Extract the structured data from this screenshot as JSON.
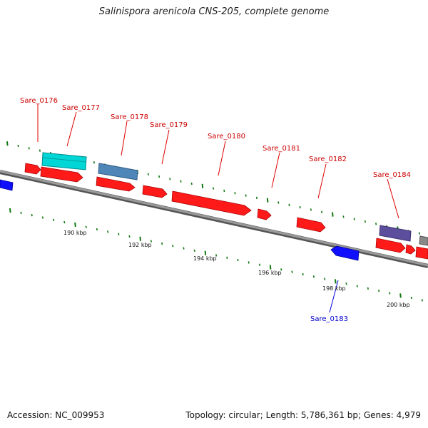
{
  "title": "Salinispora arenicola CNS-205, complete genome",
  "footer": {
    "accession": "Accession: NC_009953",
    "summary": "Topology: circular; Length: 5,786,361 bp; Genes: 4,979"
  },
  "colors": {
    "forward_gene": "#ff0000",
    "reverse_gene": "#0000ff",
    "forward_label": "#cc0000",
    "reverse_label": "#0000cc",
    "cyan_feature": "#00e5e5",
    "steel_feature": "#4f86b8",
    "slate_feature": "#5c4e9c",
    "backbone": "#8c8c8c",
    "tick": "#117711"
  },
  "ticks": [
    "190 kbp",
    "192 kbp",
    "194 kbp",
    "196 kbp",
    "198 kbp",
    "200 kbp"
  ],
  "genes": [
    {
      "name": "Sare_0176",
      "strand": "forward"
    },
    {
      "name": "Sare_0177",
      "strand": "forward"
    },
    {
      "name": "Sare_0178",
      "strand": "forward"
    },
    {
      "name": "Sare_0179",
      "strand": "forward"
    },
    {
      "name": "Sare_0180",
      "strand": "forward"
    },
    {
      "name": "Sare_0181",
      "strand": "forward"
    },
    {
      "name": "Sare_0182",
      "strand": "forward"
    },
    {
      "name": "Sare_0183",
      "strand": "reverse"
    },
    {
      "name": "Sare_0184",
      "strand": "forward"
    }
  ]
}
